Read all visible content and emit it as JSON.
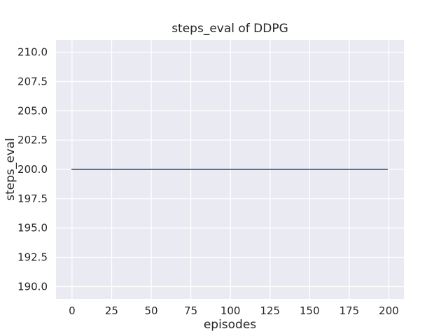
{
  "chart_data": {
    "type": "line",
    "title": "steps_eval of DDPG",
    "xlabel": "episodes",
    "ylabel": "steps_eval",
    "x_tick_labels": [
      "0",
      "25",
      "50",
      "75",
      "100",
      "125",
      "150",
      "175",
      "200"
    ],
    "x_tick_values": [
      0,
      25,
      50,
      75,
      100,
      125,
      150,
      175,
      200
    ],
    "y_tick_labels": [
      "190.0",
      "192.5",
      "195.0",
      "197.5",
      "200.0",
      "202.5",
      "205.0",
      "207.5",
      "210.0"
    ],
    "y_tick_values": [
      190.0,
      192.5,
      195.0,
      197.5,
      200.0,
      202.5,
      205.0,
      207.5,
      210.0
    ],
    "xlim": [
      -10.1,
      209.5
    ],
    "ylim": [
      188.95,
      211.05
    ],
    "grid": true,
    "legend": false,
    "figure_background": "#FFFFFF",
    "plot_background": "#EAEAF2",
    "grid_color": "#FFFFFF",
    "text_color": "#262626",
    "series": [
      {
        "name": "steps_eval",
        "color": "#4C72B0",
        "x": [
          0,
          199
        ],
        "y": [
          200,
          200
        ]
      }
    ]
  }
}
